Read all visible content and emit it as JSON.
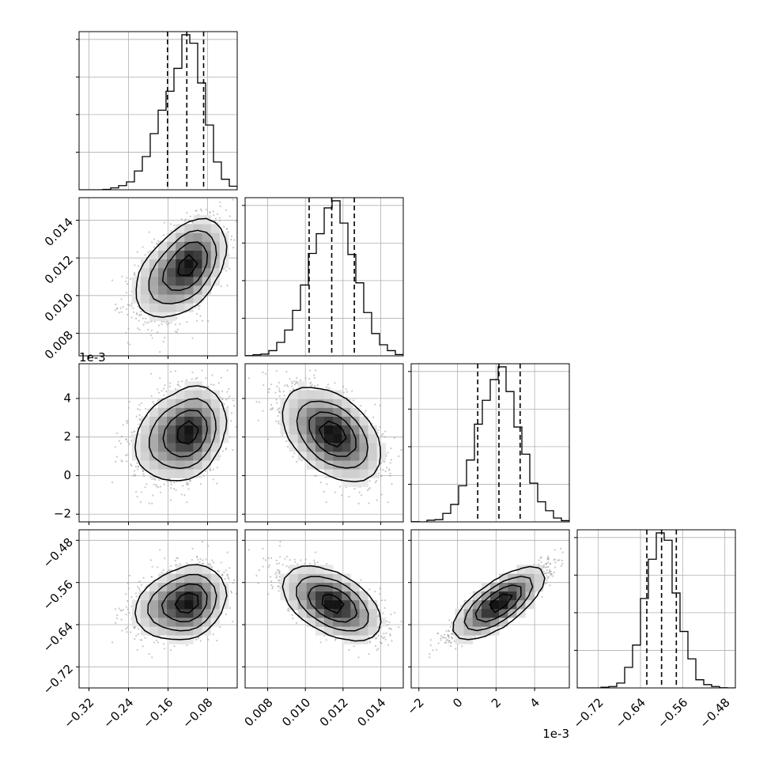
{
  "chart_data": {
    "type": "corner",
    "params": [
      {
        "index": 0,
        "range": [
          -0.34,
          -0.02
        ],
        "ticks": [
          -0.32,
          -0.24,
          -0.16,
          -0.08
        ],
        "tick_labels": [
          "−0.32",
          "−0.24",
          "−0.16",
          "−0.08"
        ],
        "mean": -0.125,
        "sd": 0.035,
        "quantiles": [
          -0.161,
          -0.122,
          -0.088
        ],
        "offset_label": ""
      },
      {
        "index": 1,
        "range": [
          0.0068,
          0.0152
        ],
        "ticks": [
          0.008,
          0.01,
          0.012,
          0.014
        ],
        "tick_labels": [
          "0.008",
          "0.010",
          "0.012",
          "0.014"
        ],
        "mean": 0.01145,
        "sd": 0.0012,
        "quantiles": [
          0.0102,
          0.0114,
          0.0126
        ],
        "offset_label": ""
      },
      {
        "index": 2,
        "range": [
          -2.4,
          5.8
        ],
        "ticks": [
          -2,
          0,
          2,
          4
        ],
        "tick_labels": [
          "−2",
          "0",
          "2",
          "4"
        ],
        "mean": 2.15,
        "sd": 1.1,
        "quantiles": [
          1.05,
          2.15,
          3.25
        ],
        "offset_label": "1e-3"
      },
      {
        "index": 3,
        "range": [
          -0.76,
          -0.46
        ],
        "ticks": [
          -0.72,
          -0.64,
          -0.56,
          -0.48
        ],
        "tick_labels": [
          "−0.72",
          "−0.64",
          "−0.56",
          "−0.48"
        ],
        "mean": -0.6,
        "sd": 0.03,
        "quantiles": [
          -0.628,
          -0.6,
          -0.572
        ],
        "offset_label": ""
      }
    ],
    "correlations": [
      [
        1,
        0.55,
        0.3,
        0.3
      ],
      [
        0.55,
        1,
        -0.5,
        -0.6
      ],
      [
        0.3,
        -0.5,
        1,
        0.9
      ],
      [
        0.3,
        -0.6,
        0.9,
        1
      ]
    ],
    "histogram_bins": 20,
    "contour_levels": [
      0.118,
      0.393,
      0.675,
      0.865
    ],
    "grid": true,
    "colors": {
      "ink": "#000000",
      "points": "#9a9a9a",
      "grid": "#b0b0b0",
      "background": "#ffffff"
    }
  }
}
